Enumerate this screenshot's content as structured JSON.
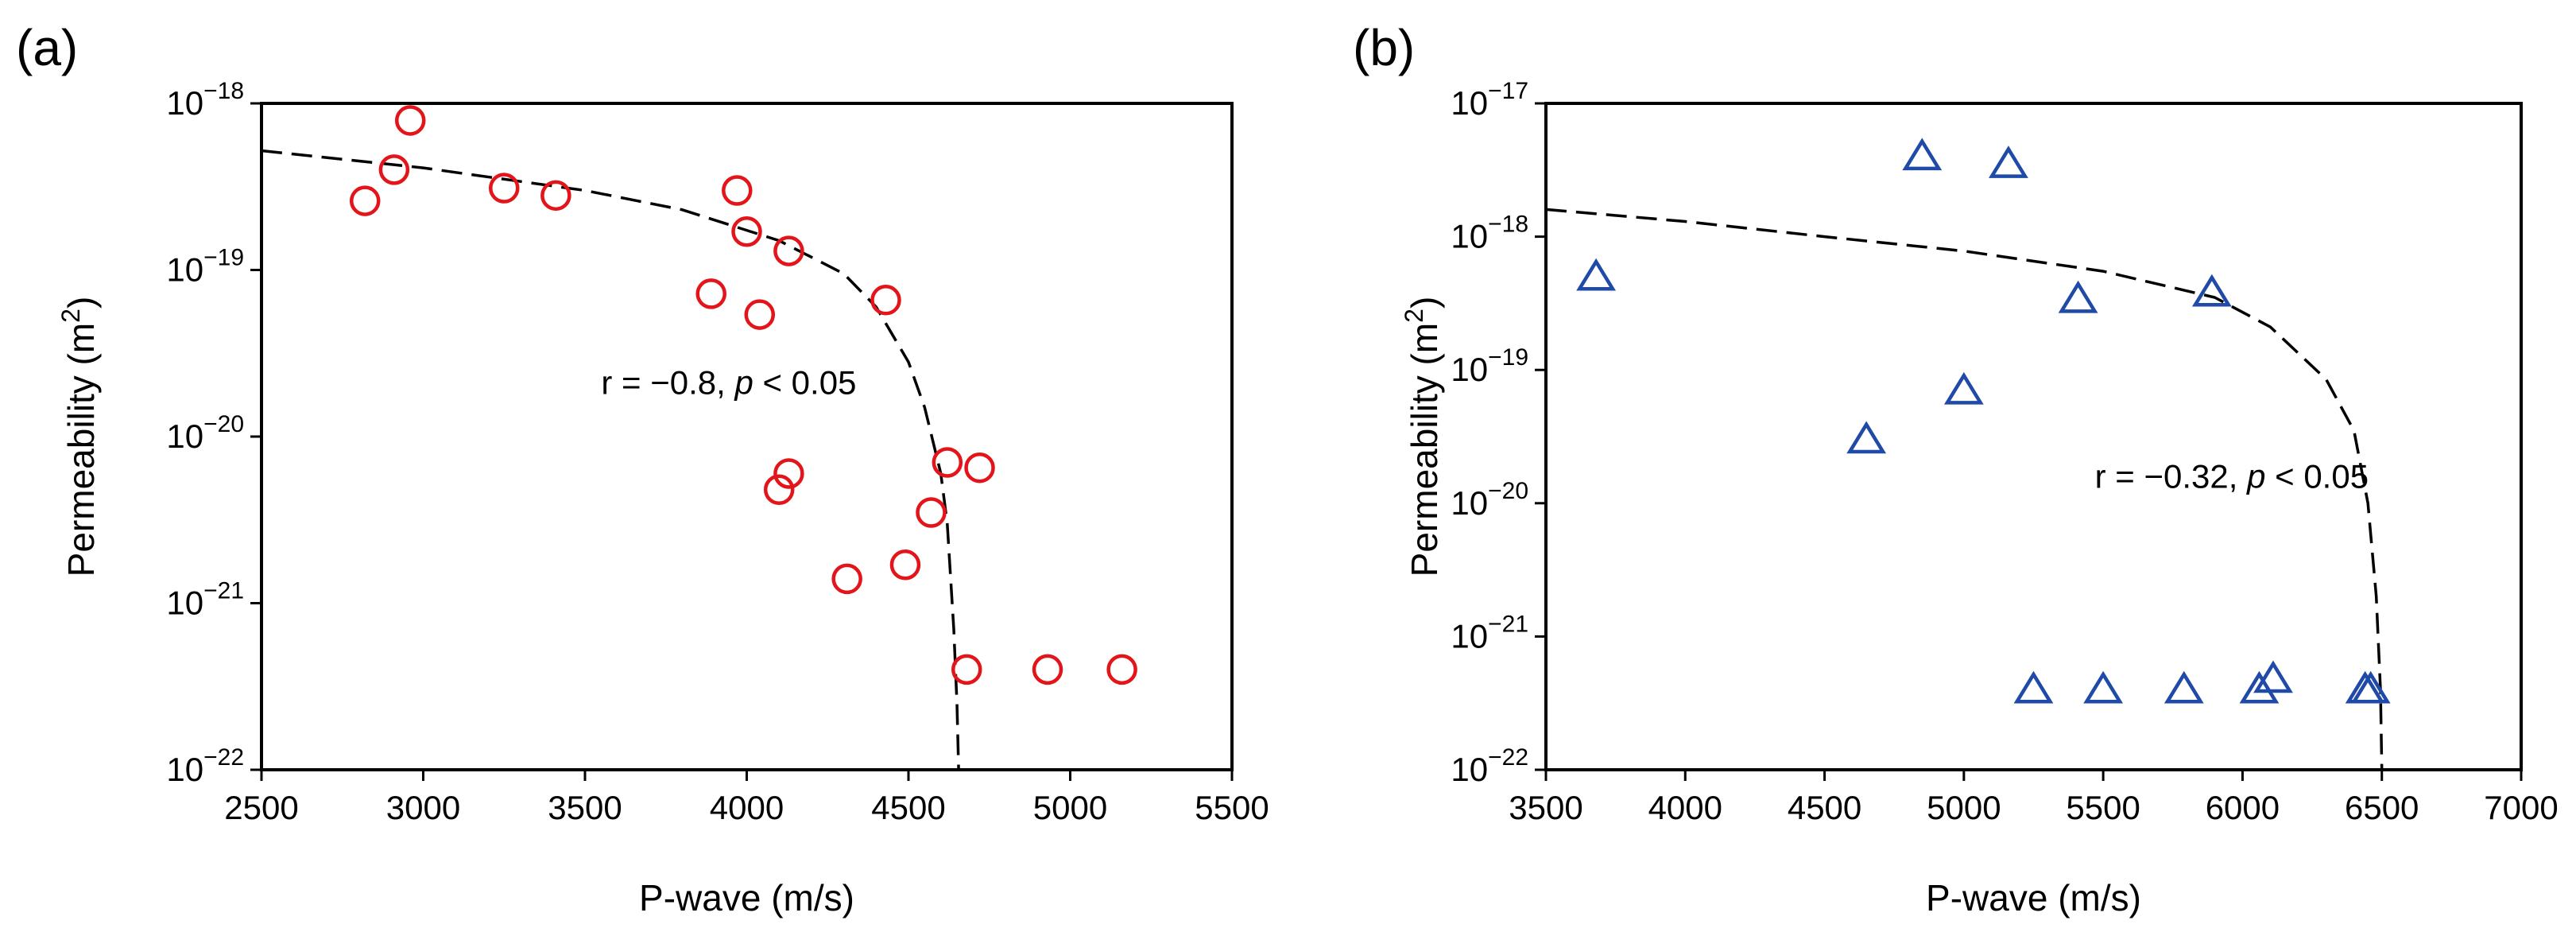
{
  "chart_data": [
    {
      "type": "scatter",
      "panel_label": "(a)",
      "xlabel": "P-wave (m/s)",
      "ylabel_base": "Permeability (m",
      "ylabel_sup": "2",
      "ylabel_close": ")",
      "xlim": [
        2500,
        5500
      ],
      "ylim": [
        1e-22,
        1e-18
      ],
      "yscale": "log",
      "x_ticks": [
        2500,
        3000,
        3500,
        4000,
        4500,
        5000,
        5500
      ],
      "x_tick_labels": [
        "2500",
        "3000",
        "3500",
        "4000",
        "4500",
        "5000",
        "5500"
      ],
      "y_ticks": [
        1e-22,
        1e-21,
        1e-20,
        1e-19,
        1e-18
      ],
      "y_tick_base": "10",
      "y_tick_exponents": [
        "−22",
        "−21",
        "−20",
        "−19",
        "−18"
      ],
      "grid": false,
      "marker": "circle",
      "marker_color": "#e3151a",
      "points": [
        {
          "x": 2820,
          "y": 2.6e-19
        },
        {
          "x": 2910,
          "y": 4e-19
        },
        {
          "x": 2960,
          "y": 7.9e-19
        },
        {
          "x": 3250,
          "y": 3.1e-19
        },
        {
          "x": 3410,
          "y": 2.8e-19
        },
        {
          "x": 3890,
          "y": 7.2e-20
        },
        {
          "x": 3970,
          "y": 3e-19
        },
        {
          "x": 4000,
          "y": 1.7e-19
        },
        {
          "x": 4040,
          "y": 5.4e-20
        },
        {
          "x": 4100,
          "y": 4.8e-21
        },
        {
          "x": 4130,
          "y": 1.3e-19
        },
        {
          "x": 4130,
          "y": 6e-21
        },
        {
          "x": 4310,
          "y": 1.4e-21
        },
        {
          "x": 4430,
          "y": 6.6e-20
        },
        {
          "x": 4490,
          "y": 1.7e-21
        },
        {
          "x": 4570,
          "y": 3.5e-21
        },
        {
          "x": 4620,
          "y": 7e-21
        },
        {
          "x": 4680,
          "y": 4e-22
        },
        {
          "x": 4720,
          "y": 6.5e-21
        },
        {
          "x": 4930,
          "y": 4e-22
        },
        {
          "x": 5160,
          "y": 4e-22
        }
      ],
      "fit_curve": {
        "style": "dashed",
        "points": [
          {
            "x": 2500,
            "y": 5.2e-19
          },
          {
            "x": 3000,
            "y": 4.1e-19
          },
          {
            "x": 3500,
            "y": 3e-19
          },
          {
            "x": 3800,
            "y": 2.3e-19
          },
          {
            "x": 4100,
            "y": 1.5e-19
          },
          {
            "x": 4300,
            "y": 9.5e-20
          },
          {
            "x": 4400,
            "y": 6e-20
          },
          {
            "x": 4500,
            "y": 2.8e-20
          },
          {
            "x": 4550,
            "y": 1.5e-20
          },
          {
            "x": 4600,
            "y": 6e-21
          },
          {
            "x": 4620,
            "y": 3e-21
          },
          {
            "x": 4640,
            "y": 7e-22
          },
          {
            "x": 4650,
            "y": 2.5e-22
          },
          {
            "x": 4655,
            "y": 1e-22
          }
        ]
      },
      "annotation": {
        "r_text": "r = −0.8, ",
        "p_letter": "p",
        "p_text": " < 0.05",
        "x": 3550,
        "y": 1.8e-20
      }
    },
    {
      "type": "scatter",
      "panel_label": "(b)",
      "xlabel": "P-wave (m/s)",
      "ylabel_base": "Permeability (m",
      "ylabel_sup": "2",
      "ylabel_close": ")",
      "xlim": [
        3500,
        7000
      ],
      "ylim": [
        1e-22,
        1e-17
      ],
      "yscale": "log",
      "x_ticks": [
        3500,
        4000,
        4500,
        5000,
        5500,
        6000,
        6500,
        7000
      ],
      "x_tick_labels": [
        "3500",
        "4000",
        "4500",
        "5000",
        "5500",
        "6000",
        "6500",
        "7000"
      ],
      "y_ticks": [
        1e-22,
        1e-21,
        1e-20,
        1e-19,
        1e-18,
        1e-17
      ],
      "y_tick_base": "10",
      "y_tick_exponents": [
        "−22",
        "−21",
        "−20",
        "−19",
        "−18",
        "−17"
      ],
      "grid": false,
      "marker": "triangle",
      "marker_color": "#1f4aa8",
      "points": [
        {
          "x": 3680,
          "y": 5e-19
        },
        {
          "x": 4650,
          "y": 3e-20
        },
        {
          "x": 4850,
          "y": 4e-18
        },
        {
          "x": 5000,
          "y": 7e-20
        },
        {
          "x": 5160,
          "y": 3.5e-18
        },
        {
          "x": 5250,
          "y": 4e-22
        },
        {
          "x": 5410,
          "y": 3.4e-19
        },
        {
          "x": 5500,
          "y": 4e-22
        },
        {
          "x": 5790,
          "y": 4e-22
        },
        {
          "x": 5890,
          "y": 3.8e-19
        },
        {
          "x": 6060,
          "y": 4e-22
        },
        {
          "x": 6110,
          "y": 4.8e-22
        },
        {
          "x": 6440,
          "y": 4e-22
        },
        {
          "x": 6460,
          "y": 4e-22
        }
      ],
      "fit_curve": {
        "style": "dashed",
        "points": [
          {
            "x": 3500,
            "y": 1.6e-18
          },
          {
            "x": 4000,
            "y": 1.3e-18
          },
          {
            "x": 4500,
            "y": 1e-18
          },
          {
            "x": 5000,
            "y": 7.8e-19
          },
          {
            "x": 5500,
            "y": 5.5e-19
          },
          {
            "x": 5900,
            "y": 3.5e-19
          },
          {
            "x": 6100,
            "y": 2.1e-19
          },
          {
            "x": 6300,
            "y": 8.5e-20
          },
          {
            "x": 6400,
            "y": 3.5e-20
          },
          {
            "x": 6450,
            "y": 1e-20
          },
          {
            "x": 6480,
            "y": 2e-21
          },
          {
            "x": 6495,
            "y": 4e-22
          },
          {
            "x": 6500,
            "y": 1e-22
          }
        ]
      },
      "annotation": {
        "r_text": "r = −0.32, ",
        "p_letter": "p",
        "p_text": " < 0.05",
        "x": 5470,
        "y": 1.3e-20
      }
    }
  ]
}
